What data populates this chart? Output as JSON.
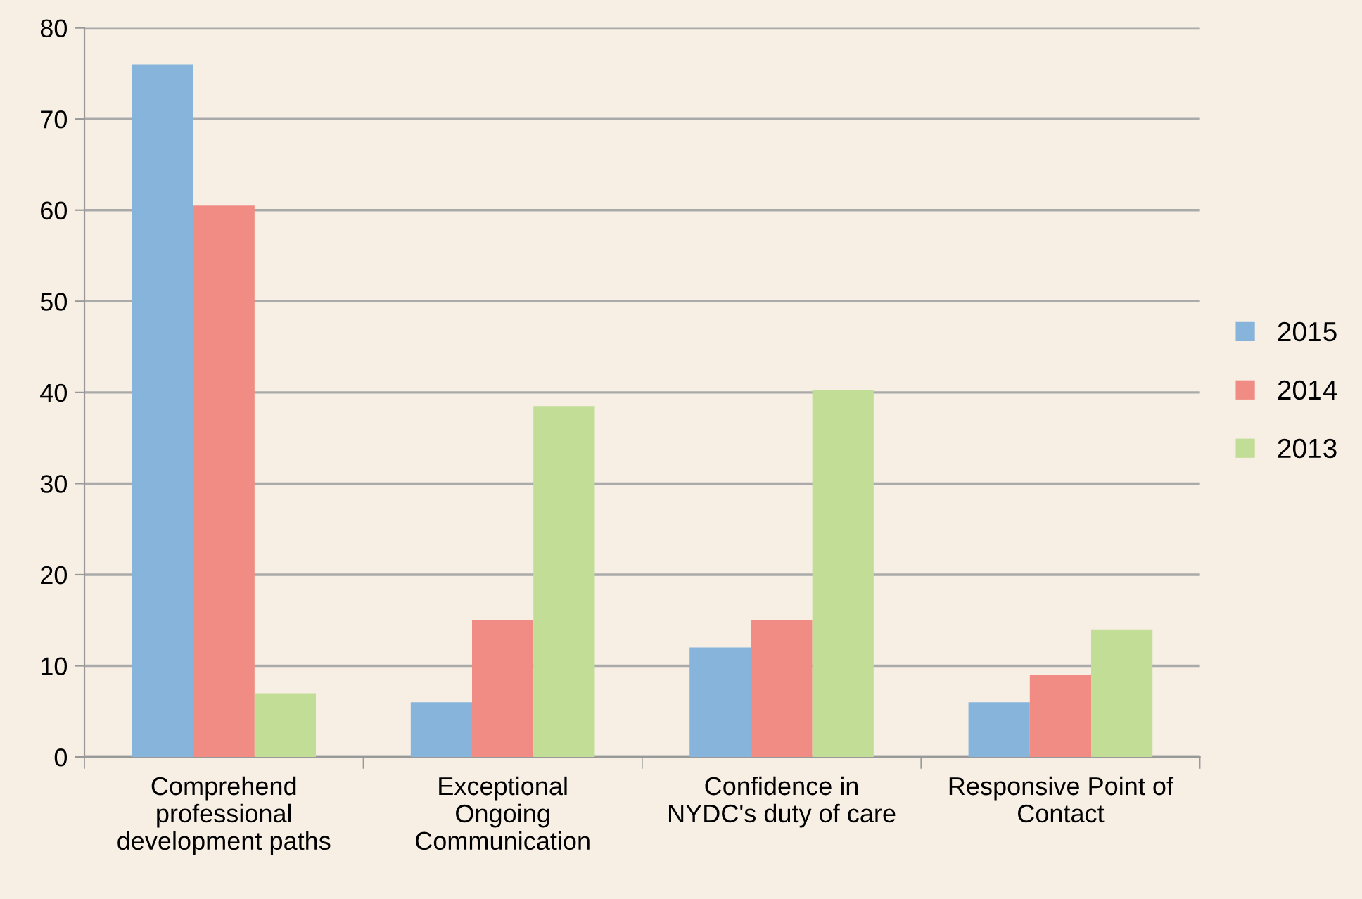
{
  "chart_data": {
    "type": "bar",
    "categories": [
      "Comprehend\nprofessional\ndevelopment paths",
      "Exceptional\nOngoing\nCommunication",
      "Confidence in\nNYDC's duty of care",
      "Responsive Point of\nContact"
    ],
    "series": [
      {
        "name": "2015",
        "color": "#86b4db",
        "values": [
          76,
          6,
          12,
          6
        ]
      },
      {
        "name": "2014",
        "color": "#f08c84",
        "values": [
          60.5,
          15,
          15,
          9
        ]
      },
      {
        "name": "2013",
        "color": "#c2dd96",
        "values": [
          7,
          38.5,
          40.3,
          14
        ]
      }
    ],
    "ylim": [
      0,
      80
    ],
    "yticks": [
      0,
      10,
      20,
      30,
      40,
      50,
      60,
      70,
      80
    ],
    "grid": "y",
    "legend": "right"
  }
}
